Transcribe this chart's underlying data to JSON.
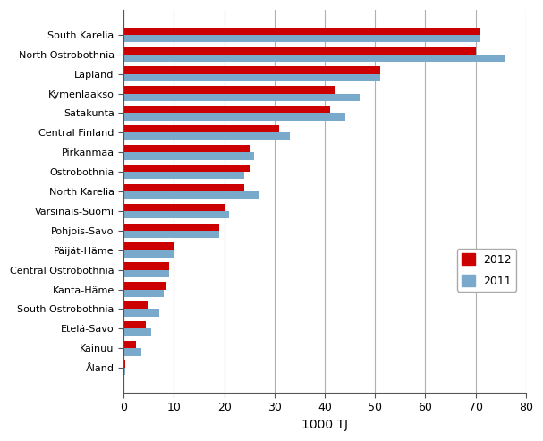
{
  "regions": [
    "South Karelia",
    "North Ostrobothnia",
    "Lapland",
    "Kymenlaakso",
    "Satakunta",
    "Central Finland",
    "Pirkanmaa",
    "Ostrobothnia",
    "North Karelia",
    "Varsinais-Suomi",
    "Pohjois-Savo",
    "Päijät-Häme",
    "Central Ostrobothnia",
    "Kanta-Häme",
    "South Ostrobothnia",
    "Etelä-Savo",
    "Kainuu",
    "Åland"
  ],
  "values_2012": [
    71,
    70,
    51,
    42,
    41,
    31,
    25,
    25,
    24,
    20,
    19,
    10,
    9,
    8.5,
    5,
    4.5,
    2.5,
    0.3
  ],
  "values_2011": [
    71,
    76,
    51,
    47,
    44,
    33,
    26,
    24,
    27,
    21,
    19,
    10,
    9,
    8,
    7,
    5.5,
    3.5,
    0.3
  ],
  "color_2012": "#cc0000",
  "color_2011": "#7aaacb",
  "xlabel": "1000 TJ",
  "xlim": [
    0,
    80
  ],
  "xticks": [
    0,
    10,
    20,
    30,
    40,
    50,
    60,
    70,
    80
  ],
  "legend_2012": "2012",
  "legend_2011": "2011",
  "bar_height": 0.38,
  "background_color": "#ffffff",
  "grid_color": "#b0b0b0"
}
